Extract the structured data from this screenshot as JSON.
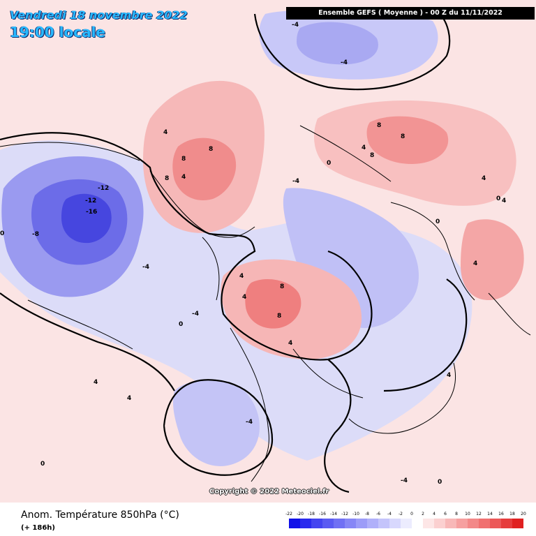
{
  "header": {
    "date": "Vendredi 18 novembre 2022",
    "local_time": "19:00 locale",
    "model_run": "Ensemble GEFS  ( Moyenne )  -  00 Z du 11/11/2022"
  },
  "footer": {
    "title": "Anom. Température 850hPa (°C)",
    "lead_time": "(+ 186h)",
    "copyright": "Copyright © 2022 Meteociel.fr"
  },
  "legend": {
    "ticks": [
      "-22",
      "-20",
      "-18",
      "-16",
      "-14",
      "-12",
      "-10",
      "-8",
      "-6",
      "-4",
      "-2",
      "0",
      "2",
      "4",
      "6",
      "8",
      "10",
      "12",
      "14",
      "16",
      "18",
      "20"
    ],
    "colors": [
      "#1010e8",
      "#2a2aee",
      "#4444f0",
      "#5a5af2",
      "#7070f4",
      "#8686f6",
      "#9c9cf8",
      "#b0b0fa",
      "#c4c4fb",
      "#d8d8fd",
      "#ececfe",
      "#ffffff",
      "#fde6e6",
      "#fbd0d0",
      "#f8b8b8",
      "#f6a0a0",
      "#f38888",
      "#f07070",
      "#ec5858",
      "#e63c3c",
      "#e02020"
    ]
  },
  "map": {
    "contour_labels": [
      {
        "text": "-4",
        "anomaly": -4
      },
      {
        "text": "-4",
        "anomaly": -4
      },
      {
        "text": "-12",
        "anomaly": -12
      },
      {
        "text": "-12",
        "anomaly": -12
      },
      {
        "text": "-16",
        "anomaly": -16
      },
      {
        "text": "-8",
        "anomaly": -8
      },
      {
        "text": "-4",
        "anomaly": -4
      },
      {
        "text": "-4",
        "anomaly": -4
      },
      {
        "text": "-4",
        "anomaly": -4
      },
      {
        "text": "-4",
        "anomaly": -4
      },
      {
        "text": "4",
        "anomaly": 4
      },
      {
        "text": "8",
        "anomaly": 8
      },
      {
        "text": "8",
        "anomaly": 8
      },
      {
        "text": "8",
        "anomaly": 8
      },
      {
        "text": "4",
        "anomaly": 4
      },
      {
        "text": "8",
        "anomaly": 8
      },
      {
        "text": "8",
        "anomaly": 8
      },
      {
        "text": "8",
        "anomaly": 8
      },
      {
        "text": "4",
        "anomaly": 4
      },
      {
        "text": "4",
        "anomaly": 4
      },
      {
        "text": "4",
        "anomaly": 4
      },
      {
        "text": "8",
        "anomaly": 8
      },
      {
        "text": "8",
        "anomaly": 8
      },
      {
        "text": "4",
        "anomaly": 4
      },
      {
        "text": "4",
        "anomaly": 4
      },
      {
        "text": "4",
        "anomaly": 4
      },
      {
        "text": "4",
        "anomaly": 4
      },
      {
        "text": "0",
        "anomaly": 0
      },
      {
        "text": "0",
        "anomaly": 0
      },
      {
        "text": "0",
        "anomaly": 0
      },
      {
        "text": "0",
        "anomaly": 0
      },
      {
        "text": "-4",
        "anomaly": -4
      },
      {
        "text": "4",
        "anomaly": 4
      },
      {
        "text": "4",
        "anomaly": 4
      },
      {
        "text": "4",
        "anomaly": 4
      },
      {
        "text": "0",
        "anomaly": 0
      },
      {
        "text": "0",
        "anomaly": 0
      },
      {
        "text": "0",
        "anomaly": 0
      }
    ]
  }
}
